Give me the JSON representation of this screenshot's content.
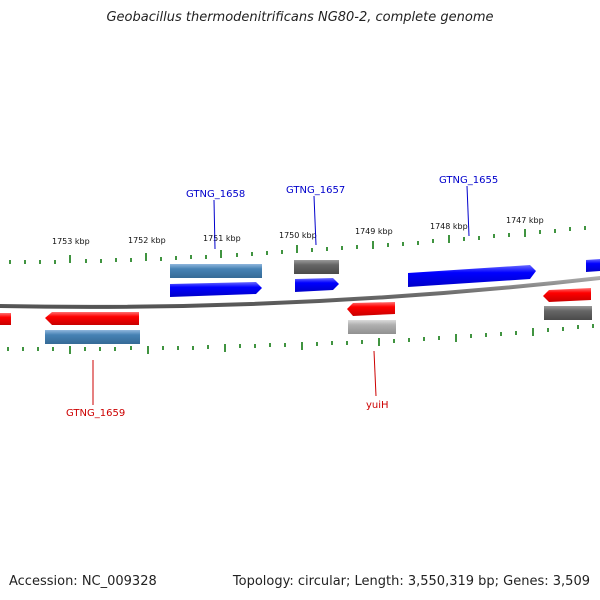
{
  "header": {
    "title": "Geobacillus thermodenitrificans NG80-2, complete genome"
  },
  "footer": {
    "accession": "Accession: NC_009328",
    "summary": "Topology: circular; Length: 3,550,319 bp; Genes: 3,509"
  },
  "scale": {
    "ticks": [
      {
        "label": "1753 kbp",
        "kbp": 1753
      },
      {
        "label": "1752 kbp",
        "kbp": 1752
      },
      {
        "label": "1751 kbp",
        "kbp": 1751
      },
      {
        "label": "1750 kbp",
        "kbp": 1750
      },
      {
        "label": "1749 kbp",
        "kbp": 1749
      },
      {
        "label": "1748 kbp",
        "kbp": 1748
      },
      {
        "label": "1747 kbp",
        "kbp": 1747
      }
    ]
  },
  "genes": {
    "labeled": [
      {
        "name": "GTNG_1658",
        "color": "#0000cc"
      },
      {
        "name": "GTNG_1657",
        "color": "#0000cc"
      },
      {
        "name": "GTNG_1655",
        "color": "#0000cc"
      },
      {
        "name": "GTNG_1659",
        "color": "#cc0000"
      },
      {
        "name": "yuiH",
        "color": "#cc0000"
      }
    ]
  },
  "colors": {
    "forward_cds": "#0000ff",
    "reverse_cds": "#ff0000",
    "gene_steelblue": "#4682b4",
    "gene_gray": "#666666",
    "gene_lightgray": "#b0b0b0",
    "backbone": "#808080",
    "tick": "#006400"
  }
}
